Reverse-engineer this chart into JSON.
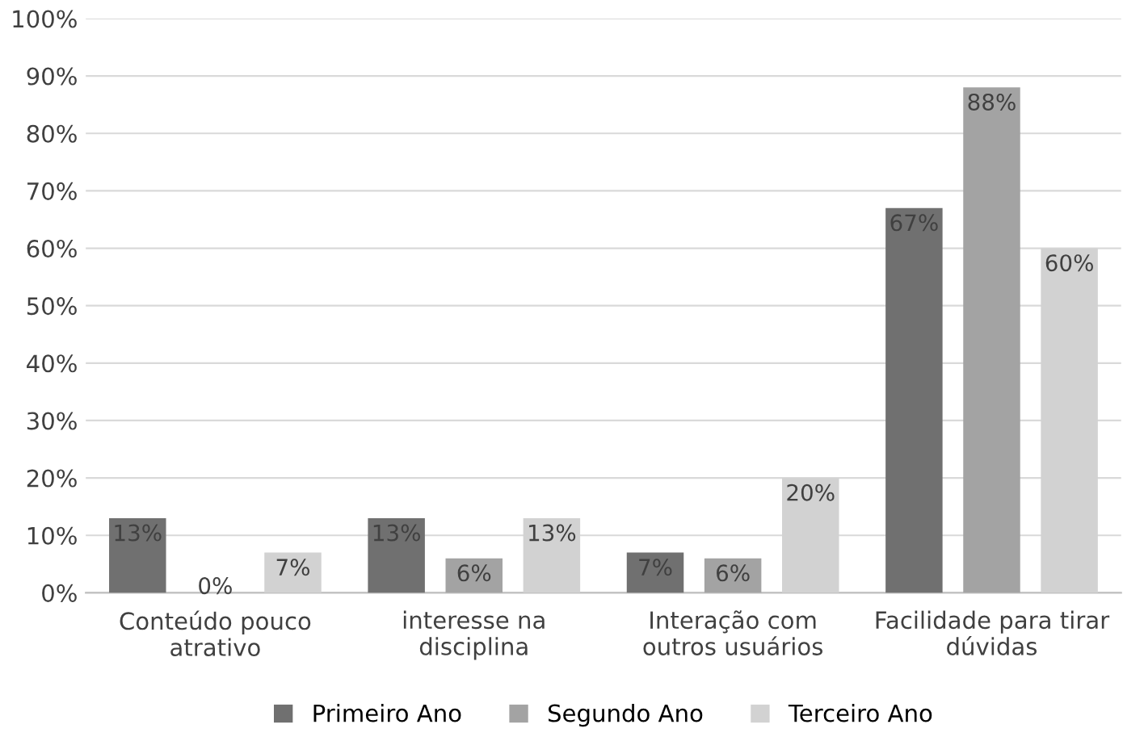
{
  "chart_data": {
    "type": "bar",
    "categories": [
      "Conteúdo pouco\natrativo",
      "interesse na\ndisciplina",
      "Interação com\noutros usuários",
      "Facilidade para tirar\ndúvidas"
    ],
    "series": [
      {
        "name": "Primeiro Ano",
        "color": "#707070",
        "values": [
          13,
          13,
          7,
          67
        ],
        "value_labels": [
          "13%",
          "13%",
          "7%",
          "67%"
        ]
      },
      {
        "name": "Segundo Ano",
        "color": "#a3a3a3",
        "values": [
          0,
          6,
          6,
          88
        ],
        "value_labels": [
          "0%",
          "6%",
          "6%",
          "88%"
        ]
      },
      {
        "name": "Terceiro Ano",
        "color": "#d2d2d2",
        "values": [
          7,
          13,
          20,
          60
        ],
        "value_labels": [
          "7%",
          "13%",
          "20%",
          "60%"
        ]
      }
    ],
    "ylim": [
      0,
      100
    ],
    "yticks": [
      {
        "value": 0,
        "label": "0%"
      },
      {
        "value": 10,
        "label": "10%"
      },
      {
        "value": 20,
        "label": "20%"
      },
      {
        "value": 30,
        "label": "30%"
      },
      {
        "value": 40,
        "label": "40%"
      },
      {
        "value": 50,
        "label": "50%"
      },
      {
        "value": 60,
        "label": "60%"
      },
      {
        "value": 70,
        "label": "70%"
      },
      {
        "value": 80,
        "label": "80%"
      },
      {
        "value": 90,
        "label": "90%"
      },
      {
        "value": 100,
        "label": "100%"
      }
    ],
    "grid": "y",
    "legend": "bottom"
  }
}
